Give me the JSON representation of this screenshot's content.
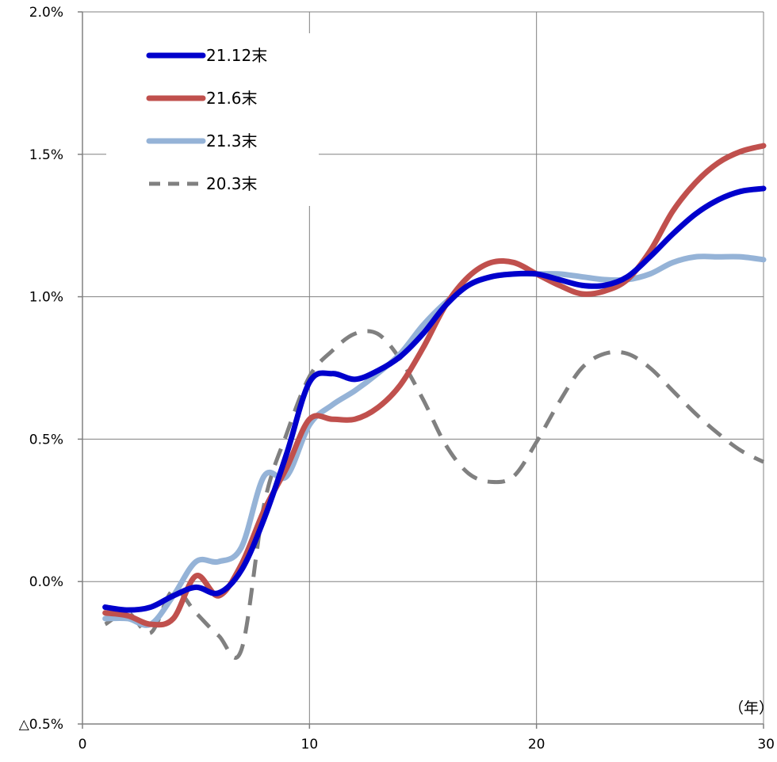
{
  "chart_data": {
    "type": "line",
    "x_unit_label": "（年）",
    "xlim": [
      0,
      30
    ],
    "ylim": [
      -0.5,
      2.0
    ],
    "x_ticks": [
      {
        "value": 0,
        "label": "0"
      },
      {
        "value": 10,
        "label": "10"
      },
      {
        "value": 20,
        "label": "20"
      },
      {
        "value": 30,
        "label": "30"
      }
    ],
    "y_ticks": [
      {
        "value": 2.0,
        "label": "2.0%"
      },
      {
        "value": 1.5,
        "label": "1.5%"
      },
      {
        "value": 1.0,
        "label": "1.0%"
      },
      {
        "value": 0.5,
        "label": "0.5%"
      },
      {
        "value": 0.0,
        "label": "0.0%"
      },
      {
        "value": -0.5,
        "label": "△0.5%"
      }
    ],
    "grid": true,
    "legend_position": "top-left",
    "series": [
      {
        "name": "21.12末",
        "color": "#0000CC",
        "dash": "solid",
        "x": [
          1,
          2,
          3,
          4,
          5,
          6,
          7,
          8,
          9,
          10,
          11,
          12,
          13,
          14,
          15,
          16,
          17,
          18,
          19,
          20,
          21,
          22,
          23,
          24,
          25,
          26,
          27,
          28,
          29,
          30
        ],
        "values": [
          -0.09,
          -0.1,
          -0.09,
          -0.05,
          -0.02,
          -0.04,
          0.04,
          0.22,
          0.45,
          0.7,
          0.73,
          0.71,
          0.74,
          0.79,
          0.87,
          0.97,
          1.04,
          1.07,
          1.08,
          1.08,
          1.06,
          1.04,
          1.04,
          1.07,
          1.14,
          1.22,
          1.29,
          1.34,
          1.37,
          1.38
        ]
      },
      {
        "name": "21.6末",
        "color": "#C0504D",
        "dash": "solid",
        "x": [
          1,
          2,
          3,
          4,
          5,
          6,
          7,
          8,
          9,
          10,
          11,
          12,
          13,
          14,
          15,
          16,
          17,
          18,
          19,
          20,
          21,
          22,
          23,
          24,
          25,
          26,
          27,
          28,
          29,
          30
        ],
        "values": [
          -0.11,
          -0.12,
          -0.15,
          -0.13,
          0.02,
          -0.05,
          0.06,
          0.25,
          0.4,
          0.57,
          0.57,
          0.57,
          0.61,
          0.69,
          0.82,
          0.97,
          1.07,
          1.12,
          1.12,
          1.08,
          1.04,
          1.01,
          1.02,
          1.06,
          1.16,
          1.3,
          1.4,
          1.47,
          1.51,
          1.53
        ]
      },
      {
        "name": "21.3末",
        "color": "#95B3D7",
        "dash": "solid",
        "x": [
          1,
          2,
          3,
          4,
          5,
          6,
          7,
          8,
          9,
          10,
          11,
          12,
          13,
          14,
          15,
          16,
          17,
          18,
          19,
          20,
          21,
          22,
          23,
          24,
          25,
          26,
          27,
          28,
          29,
          30
        ],
        "values": [
          -0.13,
          -0.13,
          -0.15,
          -0.05,
          0.07,
          0.07,
          0.12,
          0.37,
          0.37,
          0.55,
          0.62,
          0.67,
          0.73,
          0.8,
          0.9,
          0.98,
          1.04,
          1.07,
          1.08,
          1.08,
          1.08,
          1.07,
          1.06,
          1.06,
          1.08,
          1.12,
          1.14,
          1.14,
          1.14,
          1.13
        ]
      },
      {
        "name": "20.3末",
        "color": "#808080",
        "dash": "dashed",
        "x": [
          1,
          2,
          3,
          4,
          5,
          6,
          7,
          8,
          9,
          10,
          11,
          12,
          13,
          14,
          15,
          16,
          17,
          18,
          19,
          20,
          21,
          22,
          23,
          24,
          25,
          26,
          27,
          28,
          29,
          30
        ],
        "values": [
          -0.15,
          -0.11,
          -0.18,
          -0.03,
          -0.11,
          -0.19,
          -0.24,
          0.27,
          0.52,
          0.72,
          0.81,
          0.87,
          0.87,
          0.78,
          0.64,
          0.48,
          0.38,
          0.35,
          0.37,
          0.49,
          0.63,
          0.75,
          0.8,
          0.8,
          0.75,
          0.67,
          0.59,
          0.52,
          0.46,
          0.42
        ]
      }
    ]
  }
}
